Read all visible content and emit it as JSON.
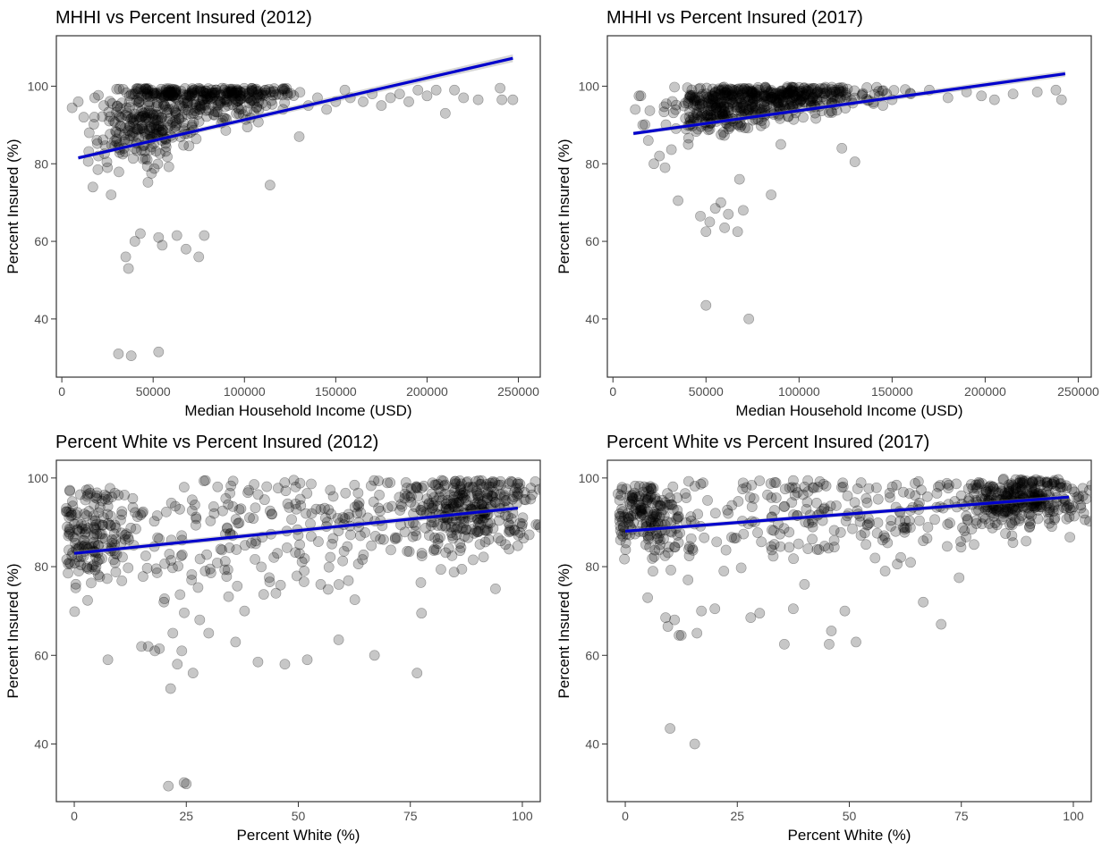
{
  "colors": {
    "points": "#000000",
    "fit_line": "#0000cc",
    "band": "#999999",
    "frame": "#333333"
  },
  "chart_data": [
    {
      "type": "scatter",
      "title": "MHHI vs Percent Insured (2012)",
      "xlabel": "Median Household Income (USD)",
      "ylabel": "Percent Insured (%)",
      "xlim": [
        -3000,
        262000
      ],
      "ylim": [
        25,
        113
      ],
      "xticks": [
        0,
        50000,
        100000,
        150000,
        200000,
        250000
      ],
      "xtick_labels": [
        "0",
        "50000",
        "100000",
        "150000",
        "200000",
        "250000"
      ],
      "yticks": [
        40,
        60,
        80,
        100
      ],
      "ytick_labels": [
        "40",
        "60",
        "80",
        "100"
      ],
      "grid": false,
      "trend": {
        "x": [
          9000,
          247000
        ],
        "y": [
          81.5,
          107.2
        ],
        "band_halfwidth": [
          0.5,
          1.0
        ]
      },
      "cloud": [
        {
          "n": 320,
          "x_mean": 50000,
          "x_sd": 14000,
          "y_base": 88.5,
          "y_slope": 9e-05,
          "y_sd": 6.5,
          "y_max": 99.5,
          "seed": 11
        },
        {
          "n": 230,
          "x_mean": 88000,
          "x_sd": 20000,
          "y_base": 93.5,
          "y_slope": 4e-05,
          "y_sd": 3.2,
          "y_max": 99.5,
          "seed": 12
        }
      ],
      "points": [
        [
          31000,
          31
        ],
        [
          38000,
          30.5
        ],
        [
          53000,
          31.5
        ],
        [
          35000,
          56
        ],
        [
          36500,
          53
        ],
        [
          40000,
          60
        ],
        [
          43000,
          62
        ],
        [
          53000,
          61
        ],
        [
          55000,
          59
        ],
        [
          63000,
          61.5
        ],
        [
          68000,
          58
        ],
        [
          75000,
          56
        ],
        [
          78000,
          61.5
        ],
        [
          114000,
          74.5
        ],
        [
          9000,
          96
        ],
        [
          12000,
          92
        ],
        [
          15000,
          88
        ],
        [
          17000,
          74
        ],
        [
          18000,
          97
        ],
        [
          20000,
          82
        ],
        [
          23000,
          95
        ],
        [
          25000,
          79
        ],
        [
          27000,
          72
        ],
        [
          130000,
          87
        ],
        [
          135000,
          95
        ],
        [
          140000,
          97
        ],
        [
          145000,
          94
        ],
        [
          150000,
          96
        ],
        [
          155000,
          99
        ],
        [
          158000,
          97
        ],
        [
          165000,
          96
        ],
        [
          170000,
          98
        ],
        [
          175000,
          95
        ],
        [
          180000,
          97
        ],
        [
          185000,
          98
        ],
        [
          190000,
          96
        ],
        [
          195000,
          99
        ],
        [
          200000,
          97.5
        ],
        [
          205000,
          99
        ],
        [
          210000,
          93
        ],
        [
          215000,
          99
        ],
        [
          220000,
          97
        ],
        [
          228000,
          96.5
        ],
        [
          240000,
          99.5
        ],
        [
          241000,
          96.5
        ],
        [
          247000,
          96.5
        ]
      ]
    },
    {
      "type": "scatter",
      "title": "MHHI vs Percent Insured (2017)",
      "xlabel": "Median Household Income (USD)",
      "ylabel": "Percent Insured (%)",
      "xlim": [
        -3000,
        257000
      ],
      "ylim": [
        25,
        113
      ],
      "xticks": [
        0,
        50000,
        100000,
        150000,
        200000,
        250000
      ],
      "xtick_labels": [
        "0",
        "50000",
        "100000",
        "150000",
        "200000",
        "250000"
      ],
      "yticks": [
        40,
        60,
        80,
        100
      ],
      "ytick_labels": [
        "40",
        "60",
        "80",
        "100"
      ],
      "grid": false,
      "trend": {
        "x": [
          11000,
          243000
        ],
        "y": [
          87.8,
          103.2
        ],
        "band_halfwidth": [
          0.5,
          0.8
        ]
      },
      "cloud": [
        {
          "n": 300,
          "x_mean": 60000,
          "x_sd": 16000,
          "y_base": 92.5,
          "y_slope": 4e-05,
          "y_sd": 3.6,
          "y_max": 99.8,
          "seed": 21
        },
        {
          "n": 260,
          "x_mean": 100000,
          "x_sd": 20000,
          "y_base": 95.5,
          "y_slope": 2e-05,
          "y_sd": 2.2,
          "y_max": 99.8,
          "seed": 22
        }
      ],
      "points": [
        [
          50000,
          43.5
        ],
        [
          73000,
          40
        ],
        [
          35000,
          70.5
        ],
        [
          47000,
          66.5
        ],
        [
          50000,
          62.5
        ],
        [
          52000,
          65
        ],
        [
          55000,
          68.5
        ],
        [
          58000,
          70
        ],
        [
          60000,
          63.5
        ],
        [
          62000,
          67
        ],
        [
          67000,
          62.5
        ],
        [
          70000,
          68
        ],
        [
          68000,
          76
        ],
        [
          85000,
          72
        ],
        [
          123000,
          84
        ],
        [
          130000,
          80.5
        ],
        [
          12000,
          94
        ],
        [
          14000,
          97.5
        ],
        [
          16000,
          90
        ],
        [
          19000,
          86
        ],
        [
          22000,
          80
        ],
        [
          25000,
          82
        ],
        [
          28000,
          79
        ],
        [
          140000,
          95.5
        ],
        [
          150000,
          96.5
        ],
        [
          160000,
          98
        ],
        [
          170000,
          99
        ],
        [
          180000,
          97
        ],
        [
          190000,
          98.5
        ],
        [
          198000,
          97.5
        ],
        [
          205000,
          96.5
        ],
        [
          215000,
          98
        ],
        [
          228000,
          98.5
        ],
        [
          238000,
          99
        ],
        [
          241000,
          96.5
        ]
      ]
    },
    {
      "type": "scatter",
      "title": "Percent White vs Percent Insured (2012)",
      "xlabel": "Percent White (%)",
      "ylabel": "Percent Insured (%)",
      "xlim": [
        -4,
        104
      ],
      "ylim": [
        27,
        104
      ],
      "xticks": [
        0,
        25,
        50,
        75,
        100
      ],
      "xtick_labels": [
        "0",
        "25",
        "50",
        "75",
        "100"
      ],
      "yticks": [
        40,
        60,
        80,
        100
      ],
      "ytick_labels": [
        "40",
        "60",
        "80",
        "100"
      ],
      "grid": false,
      "trend": {
        "x": [
          0,
          99
        ],
        "y": [
          83,
          93.2
        ],
        "band_halfwidth": [
          0.6,
          0.6
        ]
      },
      "cloud": [
        {
          "n": 150,
          "x_mean": 5,
          "x_sd": 4,
          "y_base": 87,
          "y_slope": 0,
          "y_sd": 5.5,
          "y_max": 97.5,
          "seed": 31
        },
        {
          "n": 260,
          "x_mean": 45,
          "x_sd": 26,
          "y_base": 84,
          "y_slope": 0.1,
          "y_sd": 7.5,
          "y_max": 99.5,
          "seed": 32
        },
        {
          "n": 320,
          "x_mean": 88,
          "x_sd": 8,
          "y_base": 84,
          "y_slope": 0.1,
          "y_sd": 4.5,
          "y_max": 99.5,
          "seed": 33
        }
      ],
      "points": [
        [
          21,
          30.5
        ],
        [
          24.5,
          31.3
        ],
        [
          25,
          31
        ],
        [
          7.5,
          59
        ],
        [
          21.5,
          52.5
        ],
        [
          23,
          58
        ],
        [
          26.5,
          56
        ],
        [
          15,
          62
        ],
        [
          16.5,
          62
        ],
        [
          18,
          61
        ],
        [
          19,
          61.5
        ],
        [
          22,
          65
        ],
        [
          24,
          61
        ],
        [
          30,
          65
        ],
        [
          36,
          63
        ],
        [
          41,
          58.5
        ],
        [
          47,
          58
        ],
        [
          52,
          59
        ],
        [
          59,
          63.5
        ],
        [
          67,
          60
        ],
        [
          76.5,
          56
        ],
        [
          77.5,
          69.5
        ],
        [
          94,
          75
        ],
        [
          32,
          98
        ],
        [
          49,
          99.5
        ],
        [
          20,
          72
        ],
        [
          28,
          68
        ],
        [
          38,
          70
        ],
        [
          45,
          74
        ],
        [
          55,
          76
        ]
      ]
    },
    {
      "type": "scatter",
      "title": "Percent White vs Percent Insured (2017)",
      "xlabel": "Percent White (%)",
      "ylabel": "Percent Insured (%)",
      "xlim": [
        -4,
        104
      ],
      "ylim": [
        27,
        104
      ],
      "xticks": [
        0,
        25,
        50,
        75,
        100
      ],
      "xtick_labels": [
        "0",
        "25",
        "50",
        "75",
        "100"
      ],
      "yticks": [
        40,
        60,
        80,
        100
      ],
      "ytick_labels": [
        "40",
        "60",
        "80",
        "100"
      ],
      "grid": false,
      "trend": {
        "x": [
          0,
          99
        ],
        "y": [
          88,
          95.7
        ],
        "band_halfwidth": [
          0.5,
          0.5
        ]
      },
      "cloud": [
        {
          "n": 150,
          "x_mean": 5,
          "x_sd": 4,
          "y_base": 92,
          "y_slope": 0,
          "y_sd": 3.8,
          "y_max": 98.5,
          "seed": 41
        },
        {
          "n": 260,
          "x_mean": 45,
          "x_sd": 26,
          "y_base": 89,
          "y_slope": 0.07,
          "y_sd": 5.5,
          "y_max": 99.5,
          "seed": 42
        },
        {
          "n": 320,
          "x_mean": 88,
          "x_sd": 8,
          "y_base": 89,
          "y_slope": 0.07,
          "y_sd": 3.0,
          "y_max": 99.8,
          "seed": 43
        }
      ],
      "points": [
        [
          10,
          43.5
        ],
        [
          15.5,
          40
        ],
        [
          5,
          73
        ],
        [
          9,
          68.5
        ],
        [
          9.5,
          66.5
        ],
        [
          11,
          68
        ],
        [
          12,
          64.5
        ],
        [
          12.5,
          64.5
        ],
        [
          16,
          65
        ],
        [
          17,
          70
        ],
        [
          20,
          70.5
        ],
        [
          28,
          68.5
        ],
        [
          30,
          69.5
        ],
        [
          35.5,
          62.5
        ],
        [
          37.5,
          70.5
        ],
        [
          45.5,
          62.5
        ],
        [
          46,
          65.5
        ],
        [
          49,
          70
        ],
        [
          51.5,
          63
        ],
        [
          66.5,
          72
        ],
        [
          70.5,
          67
        ],
        [
          74.5,
          77.5
        ],
        [
          14,
          77
        ],
        [
          22,
          79
        ],
        [
          40,
          76
        ],
        [
          58,
          79
        ]
      ]
    }
  ]
}
